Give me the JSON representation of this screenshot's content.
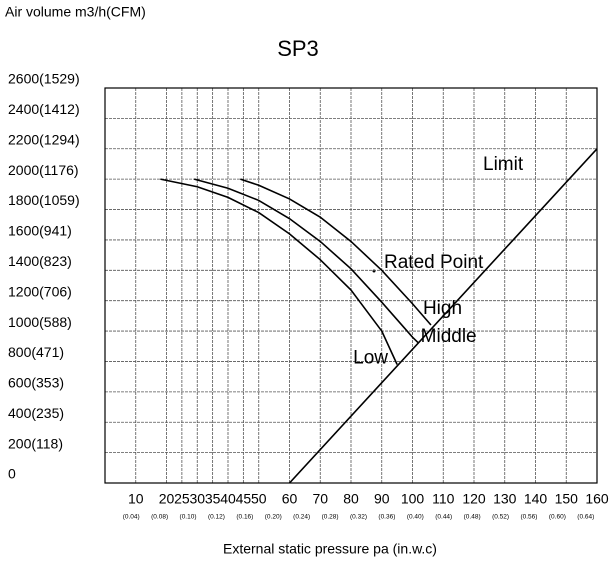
{
  "chart_data": {
    "type": "line",
    "title": "SP3",
    "y_label": "Air volume m3/h(CFM)",
    "x_label": "External static pressure pa   (in.w.c)",
    "xlim": [
      0,
      160
    ],
    "ylim": [
      0,
      2600
    ],
    "xticks": [
      10,
      20,
      25,
      30,
      35,
      40,
      45,
      50,
      60,
      70,
      80,
      90,
      100,
      110,
      120,
      130,
      140,
      150,
      160
    ],
    "x_sub_labels": [
      "(0.04)",
      "(0.08)",
      "(0.10)",
      "(0.12)",
      "(0.16)",
      "(0.20)",
      "(0.24)",
      "(0.28)",
      "(0.32)",
      "(0.36)",
      "(0.40)",
      "(0.44)",
      "(0.48)",
      "(0.52)",
      "(0.56)",
      "(0.60)",
      "(0.64)"
    ],
    "yticks": [
      {
        "value": 0,
        "label": "0"
      },
      {
        "value": 200,
        "label": "200(118)"
      },
      {
        "value": 400,
        "label": "400(235)"
      },
      {
        "value": 600,
        "label": "600(353)"
      },
      {
        "value": 800,
        "label": "800(471)"
      },
      {
        "value": 1000,
        "label": "1000(588)"
      },
      {
        "value": 1200,
        "label": "1200(706)"
      },
      {
        "value": 1400,
        "label": "1400(823)"
      },
      {
        "value": 1600,
        "label": "1600(941)"
      },
      {
        "value": 1800,
        "label": "1800(1059)"
      },
      {
        "value": 2000,
        "label": "2000(1176)"
      },
      {
        "value": 2200,
        "label": "2200(1294)"
      },
      {
        "value": 2400,
        "label": "2400(1412)"
      },
      {
        "value": 2600,
        "label": "2600(1529)"
      }
    ],
    "grid": true,
    "series": [
      {
        "name": "Low",
        "color": "#000000",
        "x": [
          18,
          30,
          40,
          50,
          60,
          70,
          80,
          90,
          95
        ],
        "values": [
          2000,
          1950,
          1880,
          1780,
          1640,
          1470,
          1270,
          1000,
          780
        ]
      },
      {
        "name": "Middle",
        "color": "#000000",
        "x": [
          29,
          40,
          50,
          60,
          70,
          80,
          90,
          100,
          102
        ],
        "values": [
          2000,
          1940,
          1860,
          1740,
          1590,
          1410,
          1190,
          960,
          920
        ]
      },
      {
        "name": "High",
        "color": "#000000",
        "x": [
          44,
          50,
          60,
          70,
          80,
          90,
          100,
          106
        ],
        "values": [
          2000,
          1960,
          1870,
          1750,
          1590,
          1400,
          1180,
          1040
        ]
      },
      {
        "name": "Limit",
        "color": "#000000",
        "x": [
          60,
          160
        ],
        "values": [
          0,
          2200
        ]
      }
    ],
    "annotations": [
      "Rated Point"
    ]
  }
}
